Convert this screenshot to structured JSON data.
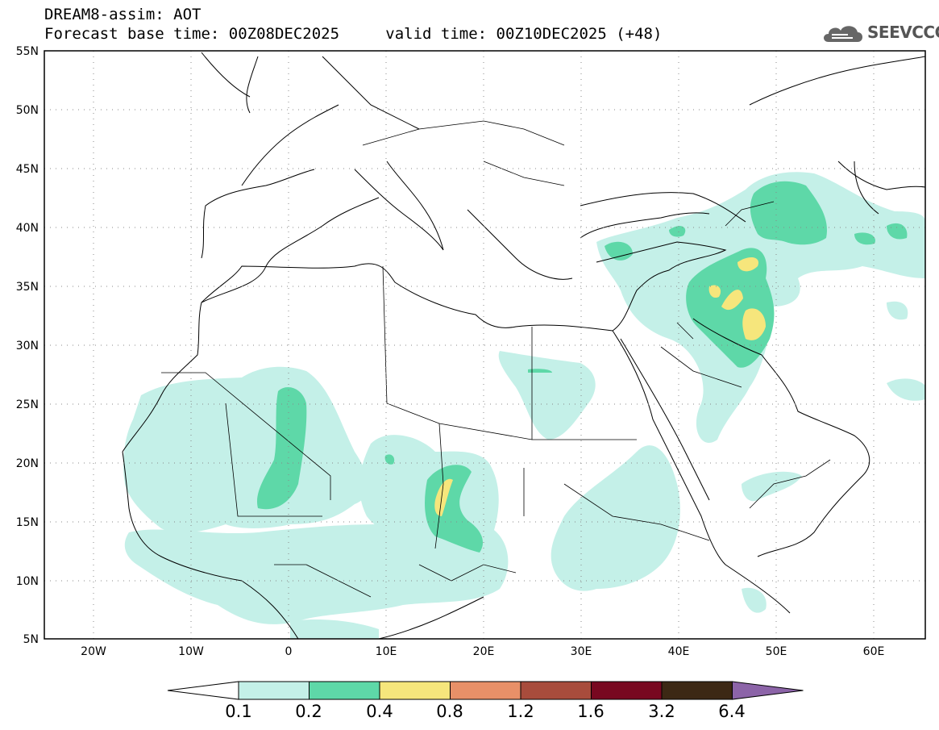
{
  "header": {
    "title": "DREAM8-assim: AOT",
    "subtitle_base": "Forecast base time: 00Z08DEC2025",
    "subtitle_valid": "valid time: 00Z10DEC2025 (+48)"
  },
  "logo": {
    "text": "SEEVCCC",
    "icon": "cloud-logo-icon"
  },
  "map": {
    "lon_range": [
      -25,
      65
    ],
    "lat_range": [
      5,
      55
    ],
    "lat_ticks": [
      "55N",
      "50N",
      "45N",
      "40N",
      "35N",
      "30N",
      "25N",
      "20N",
      "15N",
      "10N",
      "5N"
    ],
    "lon_ticks": [
      "20W",
      "10W",
      "0",
      "10E",
      "20E",
      "30E",
      "40E",
      "50E",
      "60E"
    ],
    "gridlines": true
  },
  "colorbar": {
    "labels": [
      "0.1",
      "0.2",
      "0.4",
      "0.8",
      "1.2",
      "1.6",
      "3.2",
      "6.4"
    ],
    "colors": [
      "#ffffff",
      "#c4f0e8",
      "#5ed8a8",
      "#f6e67c",
      "#e89068",
      "#a84c3c",
      "#780820",
      "#3c2814",
      "#8c64a8"
    ]
  }
}
